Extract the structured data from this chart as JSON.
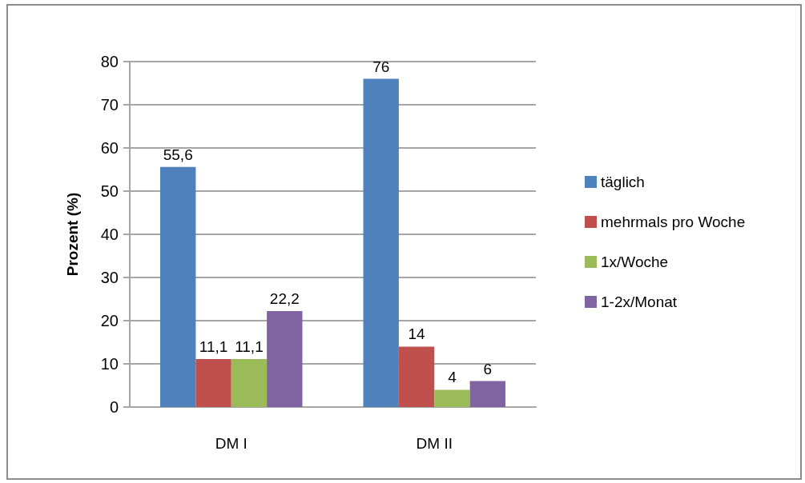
{
  "chart_data": {
    "type": "bar",
    "ylabel": "Prozent (%)",
    "categories": [
      "DM I",
      "DM II"
    ],
    "series": [
      {
        "name": "täglich",
        "color": "#4f81bd",
        "values": [
          55.6,
          76
        ],
        "value_labels": [
          "55,6",
          "76"
        ]
      },
      {
        "name": "mehrmals pro Woche",
        "color": "#c0504d",
        "values": [
          11.1,
          14
        ],
        "value_labels": [
          "11,1",
          "14"
        ]
      },
      {
        "name": "1x/Woche",
        "color": "#9bbb59",
        "values": [
          11.1,
          4
        ],
        "value_labels": [
          "11,1",
          "4"
        ]
      },
      {
        "name": "1-2x/Monat",
        "color": "#8064a2",
        "values": [
          22.2,
          6
        ],
        "value_labels": [
          "22,2",
          "6"
        ]
      }
    ],
    "ylim": [
      0,
      80
    ],
    "yticks": [
      0,
      10,
      20,
      30,
      40,
      50,
      60,
      70,
      80
    ],
    "grid": "y",
    "legend": "right"
  }
}
